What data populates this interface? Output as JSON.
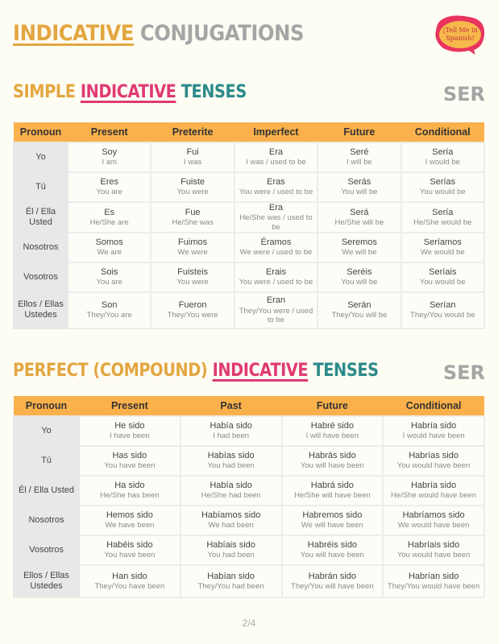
{
  "title": {
    "part1": "INDICATIVE",
    "part2": "CONJUGATIONS"
  },
  "logo": {
    "text": "¡Tell Me in Spanish!",
    "colors": {
      "outer": "#e8345e",
      "inner": "#f7b84b"
    }
  },
  "verb": "SER",
  "simple": {
    "title": {
      "part1": "SIMPLE",
      "part2": "INDICATIVE",
      "part3": "TENSES"
    },
    "headers": [
      "Pronoun",
      "Present",
      "Preterite",
      "Imperfect",
      "Future",
      "Conditional"
    ],
    "rows": [
      {
        "pronoun": "Yo",
        "cells": [
          [
            "Soy",
            "I am"
          ],
          [
            "Fui",
            "I was"
          ],
          [
            "Era",
            "I was / used to be"
          ],
          [
            "Seré",
            "I will be"
          ],
          [
            "Sería",
            "I would be"
          ]
        ]
      },
      {
        "pronoun": "Tú",
        "cells": [
          [
            "Eres",
            "You are"
          ],
          [
            "Fuiste",
            "You were"
          ],
          [
            "Eras",
            "You were / used to be"
          ],
          [
            "Serás",
            "You will be"
          ],
          [
            "Serías",
            "You would be"
          ]
        ]
      },
      {
        "pronoun": "Él / Ella Usted",
        "cells": [
          [
            "Es",
            "He/She are"
          ],
          [
            "Fue",
            "He/She was"
          ],
          [
            "Era",
            "He/She was / used to be"
          ],
          [
            "Será",
            "He/She will be"
          ],
          [
            "Sería",
            "He/She would be"
          ]
        ]
      },
      {
        "pronoun": "Nosotros",
        "cells": [
          [
            "Somos",
            "We are"
          ],
          [
            "Fuimos",
            "We were"
          ],
          [
            "Éramos",
            "We were / used to be"
          ],
          [
            "Seremos",
            "We will be"
          ],
          [
            "Seríamos",
            "We would be"
          ]
        ]
      },
      {
        "pronoun": "Vosotros",
        "cells": [
          [
            "Sois",
            "You are"
          ],
          [
            "Fuisteis",
            "You were"
          ],
          [
            "Erais",
            "You were / used to be"
          ],
          [
            "Seréis",
            "You will be"
          ],
          [
            "Seríais",
            "You would be"
          ]
        ]
      },
      {
        "pronoun": "Ellos / Ellas Ustedes",
        "cells": [
          [
            "Son",
            "They/You are"
          ],
          [
            "Fueron",
            "They/You were"
          ],
          [
            "Eran",
            "They/You were / used to be"
          ],
          [
            "Serán",
            "They/You will be"
          ],
          [
            "Serían",
            "They/You would be"
          ]
        ]
      }
    ]
  },
  "perfect": {
    "title": {
      "part1": "PERFECT (COMPOUND)",
      "part2": "INDICATIVE",
      "part3": "TENSES"
    },
    "headers": [
      "Pronoun",
      "Present",
      "Past",
      "Future",
      "Conditional"
    ],
    "rows": [
      {
        "pronoun": "Yo",
        "cells": [
          [
            "He sido",
            "I have been"
          ],
          [
            "Había sido",
            "I had been"
          ],
          [
            "Habré sido",
            "I will have been"
          ],
          [
            "Habría sido",
            "I would have been"
          ]
        ]
      },
      {
        "pronoun": "Tú",
        "cells": [
          [
            "Has sido",
            "You have been"
          ],
          [
            "Habías sido",
            "You had been"
          ],
          [
            "Habrás sido",
            "You will have been"
          ],
          [
            "Habrías sido",
            "You would have been"
          ]
        ]
      },
      {
        "pronoun": "Él / Ella Usted",
        "cells": [
          [
            "Ha sido",
            "He/She has been"
          ],
          [
            "Había sido",
            "He/She had been"
          ],
          [
            "Habrá sido",
            "He/She will have been"
          ],
          [
            "Habría sido",
            "He/She would have been"
          ]
        ]
      },
      {
        "pronoun": "Nosotros",
        "cells": [
          [
            "Hemos sido",
            "We have been"
          ],
          [
            "Habíamos sido",
            "We had been"
          ],
          [
            "Habremos sido",
            "We will have been"
          ],
          [
            "Habríamos sido",
            "We would have been"
          ]
        ]
      },
      {
        "pronoun": "Vosotros",
        "cells": [
          [
            "Habéis sido",
            "You have been"
          ],
          [
            "Habíais sido",
            "You had been"
          ],
          [
            "Habréis sido",
            "You will have been"
          ],
          [
            "Habríais sido",
            "You would have been"
          ]
        ]
      },
      {
        "pronoun": "Ellos / Ellas Ustedes",
        "cells": [
          [
            "Han sido",
            "They/You have been"
          ],
          [
            "Habían sido",
            "They/You had been"
          ],
          [
            "Habrán sido",
            "They/You will have been"
          ],
          [
            "Habrían sido",
            "They/You would have been"
          ]
        ]
      }
    ]
  },
  "page_number": "2/4"
}
